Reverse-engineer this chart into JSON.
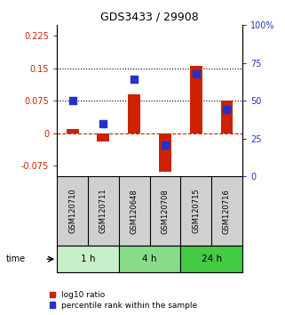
{
  "title": "GDS3433 / 29908",
  "samples": [
    "GSM120710",
    "GSM120711",
    "GSM120648",
    "GSM120708",
    "GSM120715",
    "GSM120716"
  ],
  "log10_ratio": [
    0.01,
    -0.02,
    0.09,
    -0.09,
    0.155,
    0.075
  ],
  "percentile_rank": [
    50,
    35,
    64,
    21,
    68,
    44
  ],
  "time_groups": [
    {
      "label": "1 h",
      "samples": [
        0,
        1
      ],
      "color": "#c8f0c8"
    },
    {
      "label": "4 h",
      "samples": [
        2,
        3
      ],
      "color": "#88dd88"
    },
    {
      "label": "24 h",
      "samples": [
        4,
        5
      ],
      "color": "#44cc44"
    }
  ],
  "ylim_left": [
    -0.1,
    0.25
  ],
  "ylim_right": [
    0,
    100
  ],
  "yticks_left": [
    -0.075,
    0,
    0.075,
    0.15,
    0.225
  ],
  "yticks_right": [
    0,
    25,
    50,
    75,
    100
  ],
  "hlines": [
    0.075,
    0.15
  ],
  "bar_color": "#cc2200",
  "dot_color": "#2233cc",
  "background_color": "#ffffff",
  "legend_labels": [
    "log10 ratio",
    "percentile rank within the sample"
  ],
  "bar_width": 0.4,
  "dot_size": 35
}
